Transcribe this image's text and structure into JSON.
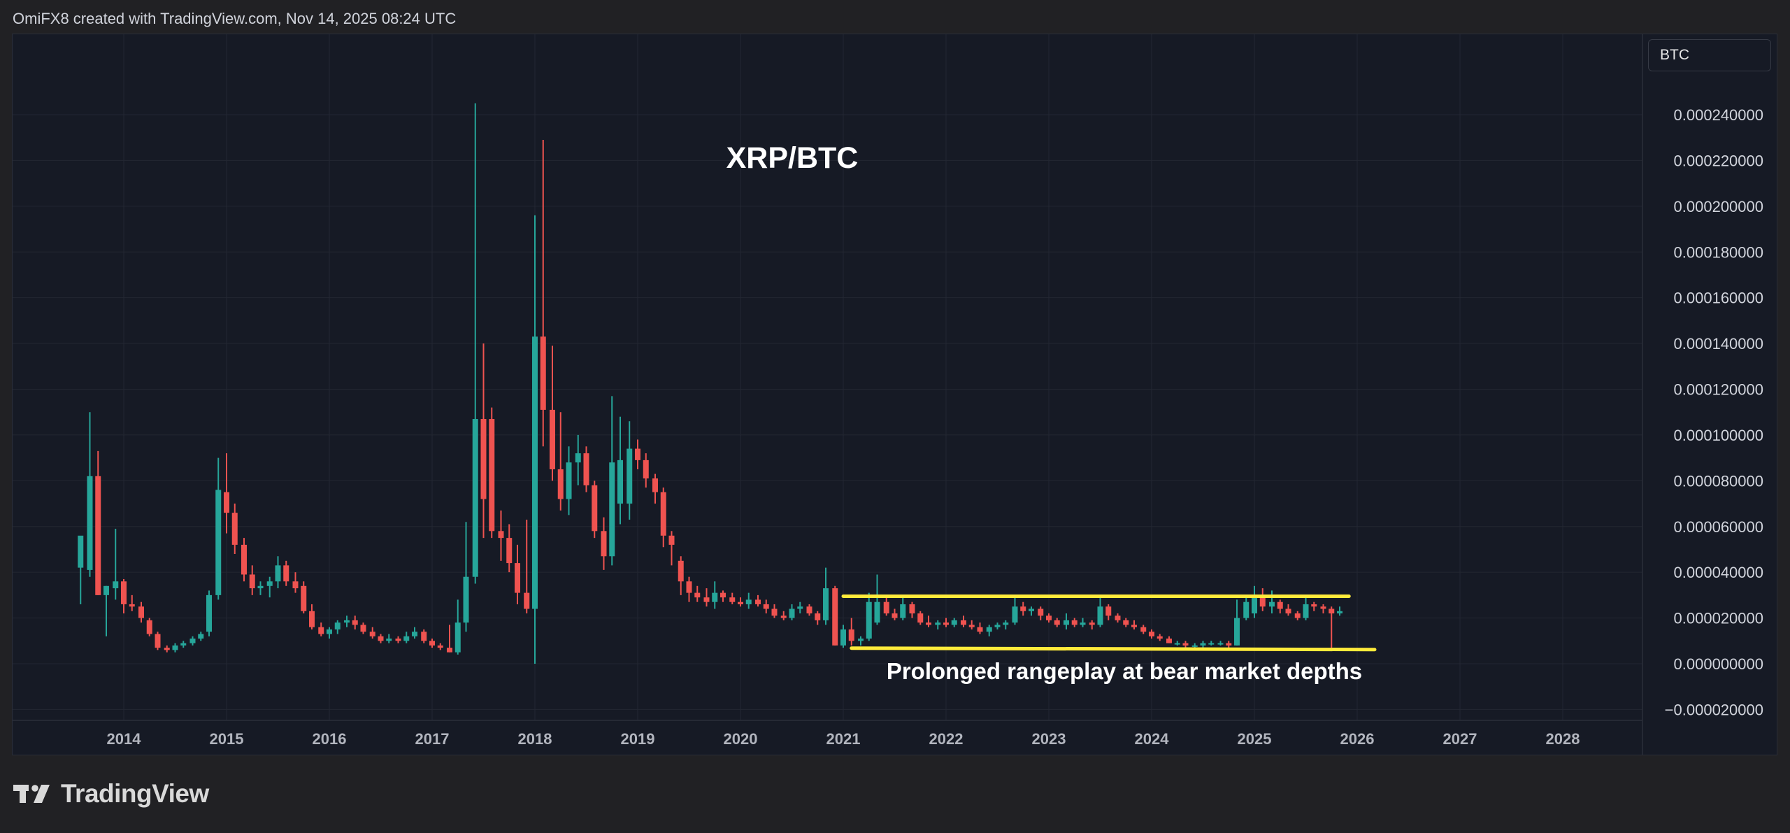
{
  "header": {
    "text": "OmiFX8 created with TradingView.com, Nov 14, 2025 08:24 UTC"
  },
  "symbol_box": {
    "label": "BTC"
  },
  "footer": {
    "brand": "TradingView"
  },
  "colors": {
    "up": "#26a69a",
    "down": "#ef5350",
    "annotation": "#ffeb3b",
    "grid": "#232732"
  },
  "chart_data": {
    "type": "candlestick",
    "title": "XRP/BTC",
    "annotation": "Prolonged rangeplay at bear market depths",
    "x_ticks": [
      "2014",
      "2015",
      "2016",
      "2017",
      "2018",
      "2019",
      "2020",
      "2021",
      "2022",
      "2023",
      "2024",
      "2025",
      "2026",
      "2027",
      "2028"
    ],
    "y_ticks": [
      "0.000240000",
      "0.000220000",
      "0.000200000",
      "0.000180000",
      "0.000160000",
      "0.000140000",
      "0.000120000",
      "0.000100000",
      "0.000080000",
      "0.000060000",
      "0.000040000",
      "0.000020000",
      "0.000000000",
      "−0.000020000"
    ],
    "ylim": [
      -2e-05,
      0.000245
    ],
    "xlim": [
      2013.0,
      2029.0
    ],
    "interval": "monthly",
    "range_lines": [
      {
        "x0": 2021.0,
        "x1": 2025.92,
        "y": 2.95e-05
      },
      {
        "x0": 2021.08,
        "x1": 2026.17,
        "y0": 6.8e-06,
        "y1": 6.2e-06
      }
    ],
    "candles": [
      {
        "t": 2013.58,
        "o": 4.2e-05,
        "h": 5.5e-05,
        "l": 2.6e-05,
        "c": 5.6e-05
      },
      {
        "t": 2013.67,
        "o": 4.1e-05,
        "h": 0.00011,
        "l": 3.8e-05,
        "c": 8.2e-05
      },
      {
        "t": 2013.75,
        "o": 8.2e-05,
        "h": 9.3e-05,
        "l": 3e-05,
        "c": 3e-05
      },
      {
        "t": 2013.83,
        "o": 3e-05,
        "h": 3.4e-05,
        "l": 1.2e-05,
        "c": 3.4e-05
      },
      {
        "t": 2013.92,
        "o": 3.3e-05,
        "h": 5.9e-05,
        "l": 2.8e-05,
        "c": 3.6e-05
      },
      {
        "t": 2014.0,
        "o": 3.6e-05,
        "h": 3.7e-05,
        "l": 2.2e-05,
        "c": 2.6e-05
      },
      {
        "t": 2014.08,
        "o": 2.6e-05,
        "h": 3e-05,
        "l": 2.3e-05,
        "c": 2.5e-05
      },
      {
        "t": 2014.17,
        "o": 2.5e-05,
        "h": 2.7e-05,
        "l": 1.8e-05,
        "c": 2e-05
      },
      {
        "t": 2014.25,
        "o": 1.9e-05,
        "h": 2e-05,
        "l": 1.2e-05,
        "c": 1.3e-05
      },
      {
        "t": 2014.33,
        "o": 1.3e-05,
        "h": 1.4e-05,
        "l": 6e-06,
        "c": 7e-06
      },
      {
        "t": 2014.42,
        "o": 7e-06,
        "h": 8e-06,
        "l": 5e-06,
        "c": 6e-06
      },
      {
        "t": 2014.5,
        "o": 6e-06,
        "h": 9e-06,
        "l": 5e-06,
        "c": 8e-06
      },
      {
        "t": 2014.58,
        "o": 8e-06,
        "h": 1e-05,
        "l": 7e-06,
        "c": 9e-06
      },
      {
        "t": 2014.67,
        "o": 9e-06,
        "h": 1.2e-05,
        "l": 8e-06,
        "c": 1.1e-05
      },
      {
        "t": 2014.75,
        "o": 1.1e-05,
        "h": 1.4e-05,
        "l": 1e-05,
        "c": 1.3e-05
      },
      {
        "t": 2014.83,
        "o": 1.4e-05,
        "h": 3.2e-05,
        "l": 1.2e-05,
        "c": 3e-05
      },
      {
        "t": 2014.92,
        "o": 3e-05,
        "h": 9e-05,
        "l": 2.8e-05,
        "c": 7.6e-05
      },
      {
        "t": 2015.0,
        "o": 7.5e-05,
        "h": 9.2e-05,
        "l": 5.7e-05,
        "c": 6.6e-05
      },
      {
        "t": 2015.08,
        "o": 6.6e-05,
        "h": 7e-05,
        "l": 4.8e-05,
        "c": 5.2e-05
      },
      {
        "t": 2015.17,
        "o": 5.2e-05,
        "h": 5.5e-05,
        "l": 3.6e-05,
        "c": 3.9e-05
      },
      {
        "t": 2015.25,
        "o": 3.9e-05,
        "h": 4.3e-05,
        "l": 3e-05,
        "c": 3.3e-05
      },
      {
        "t": 2015.33,
        "o": 3.3e-05,
        "h": 3.6e-05,
        "l": 3e-05,
        "c": 3.4e-05
      },
      {
        "t": 2015.42,
        "o": 3.4e-05,
        "h": 3.8e-05,
        "l": 2.9e-05,
        "c": 3.6e-05
      },
      {
        "t": 2015.5,
        "o": 3.6e-05,
        "h": 4.7e-05,
        "l": 3.3e-05,
        "c": 4.3e-05
      },
      {
        "t": 2015.58,
        "o": 4.3e-05,
        "h": 4.5e-05,
        "l": 3.4e-05,
        "c": 3.6e-05
      },
      {
        "t": 2015.67,
        "o": 3.6e-05,
        "h": 4e-05,
        "l": 3.1e-05,
        "c": 3.3e-05
      },
      {
        "t": 2015.75,
        "o": 3.4e-05,
        "h": 3.6e-05,
        "l": 2.2e-05,
        "c": 2.3e-05
      },
      {
        "t": 2015.83,
        "o": 2.3e-05,
        "h": 2.6e-05,
        "l": 1.5e-05,
        "c": 1.6e-05
      },
      {
        "t": 2015.92,
        "o": 1.6e-05,
        "h": 1.8e-05,
        "l": 1.2e-05,
        "c": 1.3e-05
      },
      {
        "t": 2016.0,
        "o": 1.3e-05,
        "h": 1.6e-05,
        "l": 1.1e-05,
        "c": 1.5e-05
      },
      {
        "t": 2016.08,
        "o": 1.5e-05,
        "h": 1.9e-05,
        "l": 1.3e-05,
        "c": 1.8e-05
      },
      {
        "t": 2016.17,
        "o": 1.8e-05,
        "h": 2.1e-05,
        "l": 1.6e-05,
        "c": 1.9e-05
      },
      {
        "t": 2016.25,
        "o": 1.9e-05,
        "h": 2.1e-05,
        "l": 1.5e-05,
        "c": 1.7e-05
      },
      {
        "t": 2016.33,
        "o": 1.7e-05,
        "h": 1.8e-05,
        "l": 1.3e-05,
        "c": 1.4e-05
      },
      {
        "t": 2016.42,
        "o": 1.4e-05,
        "h": 1.6e-05,
        "l": 1.1e-05,
        "c": 1.2e-05
      },
      {
        "t": 2016.5,
        "o": 1.2e-05,
        "h": 1.3e-05,
        "l": 9e-06,
        "c": 1e-05
      },
      {
        "t": 2016.58,
        "o": 1e-05,
        "h": 1.3e-05,
        "l": 9e-06,
        "c": 1.1e-05
      },
      {
        "t": 2016.67,
        "o": 1.1e-05,
        "h": 1.2e-05,
        "l": 9e-06,
        "c": 1e-05
      },
      {
        "t": 2016.75,
        "o": 1e-05,
        "h": 1.4e-05,
        "l": 9e-06,
        "c": 1.2e-05
      },
      {
        "t": 2016.83,
        "o": 1.2e-05,
        "h": 1.6e-05,
        "l": 1.1e-05,
        "c": 1.4e-05
      },
      {
        "t": 2016.92,
        "o": 1.4e-05,
        "h": 1.5e-05,
        "l": 9e-06,
        "c": 1e-05
      },
      {
        "t": 2017.0,
        "o": 1e-05,
        "h": 1.1e-05,
        "l": 7e-06,
        "c": 8e-06
      },
      {
        "t": 2017.08,
        "o": 8e-06,
        "h": 9e-06,
        "l": 6e-06,
        "c": 7e-06
      },
      {
        "t": 2017.17,
        "o": 7e-06,
        "h": 1.7e-05,
        "l": 5e-06,
        "c": 5e-06
      },
      {
        "t": 2017.25,
        "o": 5e-06,
        "h": 2.8e-05,
        "l": 4e-06,
        "c": 1.8e-05
      },
      {
        "t": 2017.33,
        "o": 1.8e-05,
        "h": 6.2e-05,
        "l": 1.4e-05,
        "c": 3.8e-05
      },
      {
        "t": 2017.42,
        "o": 3.8e-05,
        "h": 0.000245,
        "l": 3.5e-05,
        "c": 0.000107
      },
      {
        "t": 2017.5,
        "o": 0.000107,
        "h": 0.00014,
        "l": 5.5e-05,
        "c": 7.2e-05
      },
      {
        "t": 2017.58,
        "o": 0.000107,
        "h": 0.000112,
        "l": 5.5e-05,
        "c": 5.8e-05
      },
      {
        "t": 2017.67,
        "o": 5.8e-05,
        "h": 6.7e-05,
        "l": 4.5e-05,
        "c": 5.5e-05
      },
      {
        "t": 2017.75,
        "o": 5.5e-05,
        "h": 6.1e-05,
        "l": 4e-05,
        "c": 4.4e-05
      },
      {
        "t": 2017.83,
        "o": 4.4e-05,
        "h": 5.2e-05,
        "l": 2.6e-05,
        "c": 3.1e-05
      },
      {
        "t": 2017.92,
        "o": 3.1e-05,
        "h": 6.3e-05,
        "l": 2.2e-05,
        "c": 2.4e-05
      },
      {
        "t": 2018.0,
        "o": 2.4e-05,
        "h": 0.000196,
        "l": 0.0,
        "c": 0.000143
      },
      {
        "t": 2018.08,
        "o": 0.000143,
        "h": 0.000229,
        "l": 9.5e-05,
        "c": 0.000111
      },
      {
        "t": 2018.17,
        "o": 0.000111,
        "h": 0.000139,
        "l": 8e-05,
        "c": 8.5e-05
      },
      {
        "t": 2018.25,
        "o": 8.5e-05,
        "h": 0.00011,
        "l": 6.7e-05,
        "c": 7.2e-05
      },
      {
        "t": 2018.33,
        "o": 7.2e-05,
        "h": 9.5e-05,
        "l": 6.5e-05,
        "c": 8.8e-05
      },
      {
        "t": 2018.42,
        "o": 8.8e-05,
        "h": 0.0001,
        "l": 7.8e-05,
        "c": 9.2e-05
      },
      {
        "t": 2018.5,
        "o": 9.2e-05,
        "h": 9.5e-05,
        "l": 7.5e-05,
        "c": 7.8e-05
      },
      {
        "t": 2018.58,
        "o": 7.8e-05,
        "h": 8e-05,
        "l": 5.5e-05,
        "c": 5.8e-05
      },
      {
        "t": 2018.67,
        "o": 5.8e-05,
        "h": 6.4e-05,
        "l": 4.1e-05,
        "c": 4.7e-05
      },
      {
        "t": 2018.75,
        "o": 4.7e-05,
        "h": 0.000117,
        "l": 4.3e-05,
        "c": 8.8e-05
      },
      {
        "t": 2018.83,
        "o": 7e-05,
        "h": 0.000108,
        "l": 6.1e-05,
        "c": 8.9e-05
      },
      {
        "t": 2018.92,
        "o": 7e-05,
        "h": 0.000106,
        "l": 6.3e-05,
        "c": 9.4e-05
      },
      {
        "t": 2019.0,
        "o": 9.4e-05,
        "h": 9.8e-05,
        "l": 8.5e-05,
        "c": 8.9e-05
      },
      {
        "t": 2019.08,
        "o": 8.9e-05,
        "h": 9.2e-05,
        "l": 7.7e-05,
        "c": 8.1e-05
      },
      {
        "t": 2019.17,
        "o": 8.1e-05,
        "h": 8.3e-05,
        "l": 7e-05,
        "c": 7.5e-05
      },
      {
        "t": 2019.25,
        "o": 7.5e-05,
        "h": 7.7e-05,
        "l": 5.1e-05,
        "c": 5.6e-05
      },
      {
        "t": 2019.33,
        "o": 5.6e-05,
        "h": 5.8e-05,
        "l": 4.3e-05,
        "c": 5.2e-05
      },
      {
        "t": 2019.42,
        "o": 4.5e-05,
        "h": 4.7e-05,
        "l": 3e-05,
        "c": 3.6e-05
      },
      {
        "t": 2019.5,
        "o": 3.6e-05,
        "h": 3.8e-05,
        "l": 2.7e-05,
        "c": 3.1e-05
      },
      {
        "t": 2019.58,
        "o": 3.1e-05,
        "h": 3.4e-05,
        "l": 2.7e-05,
        "c": 2.9e-05
      },
      {
        "t": 2019.67,
        "o": 2.9e-05,
        "h": 3.3e-05,
        "l": 2.5e-05,
        "c": 2.7e-05
      },
      {
        "t": 2019.75,
        "o": 2.7e-05,
        "h": 3.6e-05,
        "l": 2.4e-05,
        "c": 3.1e-05
      },
      {
        "t": 2019.83,
        "o": 3.1e-05,
        "h": 3.2e-05,
        "l": 2.7e-05,
        "c": 2.9e-05
      },
      {
        "t": 2019.92,
        "o": 2.9e-05,
        "h": 3.1e-05,
        "l": 2.6e-05,
        "c": 2.7e-05
      },
      {
        "t": 2020.0,
        "o": 2.7e-05,
        "h": 2.9e-05,
        "l": 2.5e-05,
        "c": 2.6e-05
      },
      {
        "t": 2020.08,
        "o": 2.6e-05,
        "h": 3.1e-05,
        "l": 2.4e-05,
        "c": 2.8e-05
      },
      {
        "t": 2020.17,
        "o": 2.8e-05,
        "h": 3e-05,
        "l": 2.5e-05,
        "c": 2.6e-05
      },
      {
        "t": 2020.25,
        "o": 2.6e-05,
        "h": 2.8e-05,
        "l": 2.2e-05,
        "c": 2.4e-05
      },
      {
        "t": 2020.33,
        "o": 2.4e-05,
        "h": 2.6e-05,
        "l": 2e-05,
        "c": 2.1e-05
      },
      {
        "t": 2020.42,
        "o": 2.1e-05,
        "h": 2.3e-05,
        "l": 1.9e-05,
        "c": 2e-05
      },
      {
        "t": 2020.5,
        "o": 2e-05,
        "h": 2.6e-05,
        "l": 1.9e-05,
        "c": 2.4e-05
      },
      {
        "t": 2020.58,
        "o": 2.4e-05,
        "h": 2.7e-05,
        "l": 2.2e-05,
        "c": 2.5e-05
      },
      {
        "t": 2020.67,
        "o": 2.5e-05,
        "h": 2.6e-05,
        "l": 2.1e-05,
        "c": 2.2e-05
      },
      {
        "t": 2020.75,
        "o": 2.2e-05,
        "h": 2.3e-05,
        "l": 1.7e-05,
        "c": 1.9e-05
      },
      {
        "t": 2020.83,
        "o": 1.9e-05,
        "h": 4.2e-05,
        "l": 1.7e-05,
        "c": 3.3e-05
      },
      {
        "t": 2020.92,
        "o": 3.3e-05,
        "h": 3.4e-05,
        "l": 8e-06,
        "c": 8e-06
      },
      {
        "t": 2021.0,
        "o": 8e-06,
        "h": 1.7e-05,
        "l": 7e-06,
        "c": 1.5e-05
      },
      {
        "t": 2021.08,
        "o": 1.5e-05,
        "h": 2e-05,
        "l": 8e-06,
        "c": 1e-05
      },
      {
        "t": 2021.17,
        "o": 1e-05,
        "h": 1.2e-05,
        "l": 8e-06,
        "c": 1.1e-05
      },
      {
        "t": 2021.25,
        "o": 1.1e-05,
        "h": 3.1e-05,
        "l": 1e-05,
        "c": 2.7e-05
      },
      {
        "t": 2021.33,
        "o": 1.8e-05,
        "h": 3.9e-05,
        "l": 1.7e-05,
        "c": 2.7e-05
      },
      {
        "t": 2021.42,
        "o": 2.7e-05,
        "h": 2.9e-05,
        "l": 2.1e-05,
        "c": 2.2e-05
      },
      {
        "t": 2021.5,
        "o": 2.2e-05,
        "h": 2.4e-05,
        "l": 1.9e-05,
        "c": 2e-05
      },
      {
        "t": 2021.58,
        "o": 2e-05,
        "h": 3e-05,
        "l": 1.9e-05,
        "c": 2.6e-05
      },
      {
        "t": 2021.67,
        "o": 2.6e-05,
        "h": 2.7e-05,
        "l": 2e-05,
        "c": 2.2e-05
      },
      {
        "t": 2021.75,
        "o": 2.2e-05,
        "h": 2.3e-05,
        "l": 1.7e-05,
        "c": 1.8e-05
      },
      {
        "t": 2021.83,
        "o": 1.8e-05,
        "h": 2.1e-05,
        "l": 1.6e-05,
        "c": 1.7e-05
      },
      {
        "t": 2021.92,
        "o": 1.7e-05,
        "h": 1.9e-05,
        "l": 1.5e-05,
        "c": 1.8e-05
      },
      {
        "t": 2022.0,
        "o": 1.8e-05,
        "h": 2e-05,
        "l": 1.6e-05,
        "c": 1.7e-05
      },
      {
        "t": 2022.08,
        "o": 1.7e-05,
        "h": 2e-05,
        "l": 1.6e-05,
        "c": 1.9e-05
      },
      {
        "t": 2022.17,
        "o": 1.9e-05,
        "h": 2.1e-05,
        "l": 1.6e-05,
        "c": 1.7e-05
      },
      {
        "t": 2022.25,
        "o": 1.7e-05,
        "h": 1.9e-05,
        "l": 1.5e-05,
        "c": 1.6e-05
      },
      {
        "t": 2022.33,
        "o": 1.6e-05,
        "h": 1.8e-05,
        "l": 1.3e-05,
        "c": 1.4e-05
      },
      {
        "t": 2022.42,
        "o": 1.4e-05,
        "h": 1.7e-05,
        "l": 1.2e-05,
        "c": 1.6e-05
      },
      {
        "t": 2022.5,
        "o": 1.6e-05,
        "h": 1.8e-05,
        "l": 1.5e-05,
        "c": 1.7e-05
      },
      {
        "t": 2022.58,
        "o": 1.7e-05,
        "h": 1.9e-05,
        "l": 1.5e-05,
        "c": 1.8e-05
      },
      {
        "t": 2022.67,
        "o": 1.8e-05,
        "h": 2.9e-05,
        "l": 1.7e-05,
        "c": 2.5e-05
      },
      {
        "t": 2022.75,
        "o": 2.5e-05,
        "h": 2.7e-05,
        "l": 2.1e-05,
        "c": 2.3e-05
      },
      {
        "t": 2022.83,
        "o": 2.3e-05,
        "h": 2.5e-05,
        "l": 2.1e-05,
        "c": 2.4e-05
      },
      {
        "t": 2022.92,
        "o": 2.4e-05,
        "h": 2.5e-05,
        "l": 1.9e-05,
        "c": 2.1e-05
      },
      {
        "t": 2023.0,
        "o": 2.1e-05,
        "h": 2.2e-05,
        "l": 1.8e-05,
        "c": 1.9e-05
      },
      {
        "t": 2023.08,
        "o": 1.9e-05,
        "h": 2e-05,
        "l": 1.6e-05,
        "c": 1.7e-05
      },
      {
        "t": 2023.17,
        "o": 1.7e-05,
        "h": 2.2e-05,
        "l": 1.5e-05,
        "c": 1.9e-05
      },
      {
        "t": 2023.25,
        "o": 1.9e-05,
        "h": 2e-05,
        "l": 1.6e-05,
        "c": 1.7e-05
      },
      {
        "t": 2023.33,
        "o": 1.7e-05,
        "h": 2e-05,
        "l": 1.6e-05,
        "c": 1.8e-05
      },
      {
        "t": 2023.42,
        "o": 1.8e-05,
        "h": 1.9e-05,
        "l": 1.5e-05,
        "c": 1.7e-05
      },
      {
        "t": 2023.5,
        "o": 1.7e-05,
        "h": 3e-05,
        "l": 1.6e-05,
        "c": 2.5e-05
      },
      {
        "t": 2023.58,
        "o": 2.5e-05,
        "h": 2.6e-05,
        "l": 1.9e-05,
        "c": 2.1e-05
      },
      {
        "t": 2023.67,
        "o": 2.1e-05,
        "h": 2.2e-05,
        "l": 1.8e-05,
        "c": 1.9e-05
      },
      {
        "t": 2023.75,
        "o": 1.9e-05,
        "h": 2e-05,
        "l": 1.6e-05,
        "c": 1.7e-05
      },
      {
        "t": 2023.83,
        "o": 1.7e-05,
        "h": 1.9e-05,
        "l": 1.5e-05,
        "c": 1.6e-05
      },
      {
        "t": 2023.92,
        "o": 1.6e-05,
        "h": 1.7e-05,
        "l": 1.3e-05,
        "c": 1.4e-05
      },
      {
        "t": 2024.0,
        "o": 1.4e-05,
        "h": 1.5e-05,
        "l": 1.1e-05,
        "c": 1.2e-05
      },
      {
        "t": 2024.08,
        "o": 1.2e-05,
        "h": 1.3e-05,
        "l": 1e-05,
        "c": 1.1e-05
      },
      {
        "t": 2024.17,
        "o": 1.1e-05,
        "h": 1.2e-05,
        "l": 9e-06,
        "c": 9e-06
      },
      {
        "t": 2024.25,
        "o": 9e-06,
        "h": 1e-05,
        "l": 8e-06,
        "c": 9e-06
      },
      {
        "t": 2024.33,
        "o": 9e-06,
        "h": 1e-05,
        "l": 7e-06,
        "c": 8e-06
      },
      {
        "t": 2024.42,
        "o": 8e-06,
        "h": 9e-06,
        "l": 7e-06,
        "c": 8e-06
      },
      {
        "t": 2024.5,
        "o": 8e-06,
        "h": 1e-05,
        "l": 7e-06,
        "c": 9e-06
      },
      {
        "t": 2024.58,
        "o": 9e-06,
        "h": 1e-05,
        "l": 8e-06,
        "c": 9e-06
      },
      {
        "t": 2024.67,
        "o": 9e-06,
        "h": 1e-05,
        "l": 8e-06,
        "c": 9e-06
      },
      {
        "t": 2024.75,
        "o": 9e-06,
        "h": 1e-05,
        "l": 7e-06,
        "c": 8e-06
      },
      {
        "t": 2024.83,
        "o": 8e-06,
        "h": 2.8e-05,
        "l": 8e-06,
        "c": 2e-05
      },
      {
        "t": 2024.92,
        "o": 2e-05,
        "h": 2.9e-05,
        "l": 1.9e-05,
        "c": 2.7e-05
      },
      {
        "t": 2025.0,
        "o": 2.2e-05,
        "h": 3.4e-05,
        "l": 2e-05,
        "c": 3e-05
      },
      {
        "t": 2025.08,
        "o": 3e-05,
        "h": 3.3e-05,
        "l": 2.3e-05,
        "c": 2.5e-05
      },
      {
        "t": 2025.17,
        "o": 2.5e-05,
        "h": 3.2e-05,
        "l": 2.2e-05,
        "c": 2.7e-05
      },
      {
        "t": 2025.25,
        "o": 2.7e-05,
        "h": 2.8e-05,
        "l": 2.2e-05,
        "c": 2.4e-05
      },
      {
        "t": 2025.33,
        "o": 2.4e-05,
        "h": 2.6e-05,
        "l": 2.1e-05,
        "c": 2.2e-05
      },
      {
        "t": 2025.42,
        "o": 2.2e-05,
        "h": 2.3e-05,
        "l": 1.9e-05,
        "c": 2e-05
      },
      {
        "t": 2025.5,
        "o": 2e-05,
        "h": 2.9e-05,
        "l": 1.9e-05,
        "c": 2.6e-05
      },
      {
        "t": 2025.58,
        "o": 2.6e-05,
        "h": 2.7e-05,
        "l": 2.3e-05,
        "c": 2.5e-05
      },
      {
        "t": 2025.67,
        "o": 2.5e-05,
        "h": 2.6e-05,
        "l": 2.2e-05,
        "c": 2.4e-05
      },
      {
        "t": 2025.75,
        "o": 2.4e-05,
        "h": 2.5e-05,
        "l": 7e-06,
        "c": 2.2e-05
      },
      {
        "t": 2025.83,
        "o": 2.2e-05,
        "h": 2.5e-05,
        "l": 2.1e-05,
        "c": 2.3e-05
      }
    ]
  }
}
